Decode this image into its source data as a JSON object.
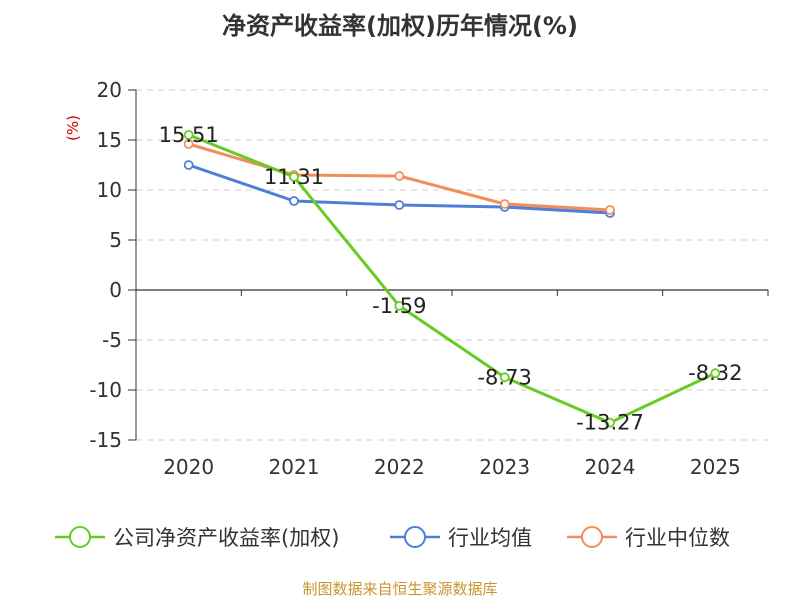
{
  "chart_data": {
    "type": "line",
    "title": "净资产收益率(加权)历年情况(%)",
    "ylabel": "(%)",
    "xlabel": "",
    "ylim": [
      -15,
      20
    ],
    "y_ticks": [
      "20",
      "15",
      "10",
      "5",
      "0",
      "-5",
      "-10",
      "-15"
    ],
    "categories": [
      "2020",
      "2021",
      "2022",
      "2023",
      "2024",
      "2025"
    ],
    "series": [
      {
        "name": "公司净资产收益率(加权)",
        "color": "#66cc22",
        "values": [
          15.51,
          11.31,
          -1.59,
          -8.73,
          -13.27,
          -8.32
        ],
        "labels": [
          "15.51",
          "11.31",
          "-1.59",
          "-8.73",
          "-13.27",
          "-8.32"
        ]
      },
      {
        "name": "行业均值",
        "color": "#4e7fd8",
        "values": [
          12.5,
          8.9,
          8.5,
          8.3,
          7.7,
          null
        ]
      },
      {
        "name": "行业中位数",
        "color": "#f28e5a",
        "values": [
          14.6,
          11.5,
          11.4,
          8.6,
          8.0,
          null
        ]
      }
    ],
    "grid": "horizontal-dashed",
    "legend_position": "bottom"
  },
  "footer": "制图数据来自恒生聚源数据库"
}
